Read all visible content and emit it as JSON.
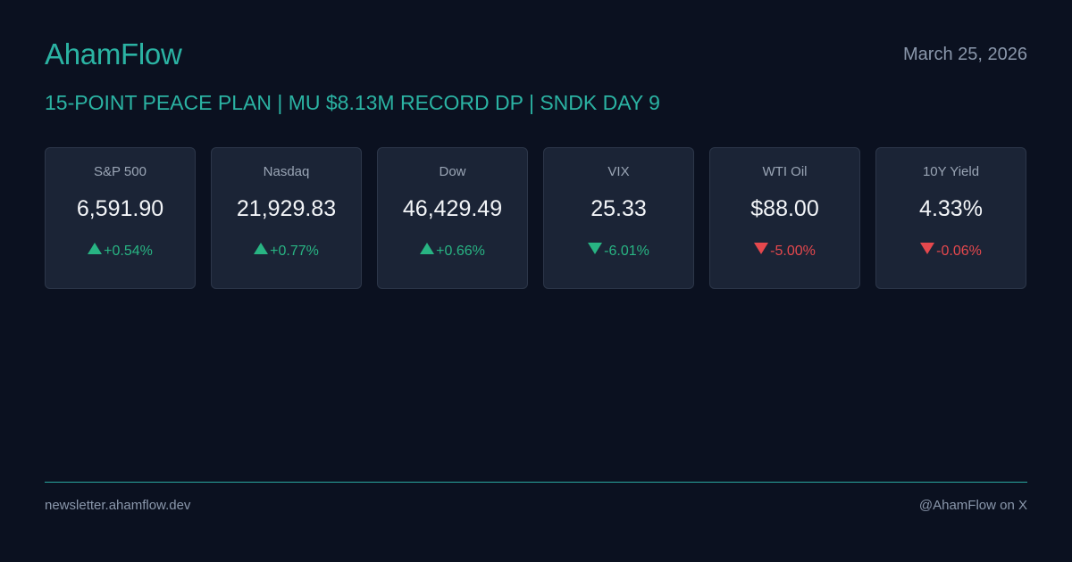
{
  "header": {
    "brand": "AhamFlow",
    "date": "March 25, 2026",
    "headline": "15-POINT PEACE PLAN | MU $8.13M RECORD DP | SNDK DAY 9"
  },
  "colors": {
    "background": "#0b1120",
    "accent": "#2bb3a3",
    "card": "#1b2436",
    "positive": "#28b483",
    "negative": "#e5484d"
  },
  "cards": [
    {
      "name": "S&P 500",
      "value": "6,591.90",
      "change": "+0.54%",
      "direction": "up",
      "tone": "positive"
    },
    {
      "name": "Nasdaq",
      "value": "21,929.83",
      "change": "+0.77%",
      "direction": "up",
      "tone": "positive"
    },
    {
      "name": "Dow",
      "value": "46,429.49",
      "change": "+0.66%",
      "direction": "up",
      "tone": "positive"
    },
    {
      "name": "VIX",
      "value": "25.33",
      "change": "-6.01%",
      "direction": "down",
      "tone": "positive"
    },
    {
      "name": "WTI Oil",
      "value": "$88.00",
      "change": "-5.00%",
      "direction": "down",
      "tone": "negative"
    },
    {
      "name": "10Y Yield",
      "value": "4.33%",
      "change": "-0.06%",
      "direction": "down",
      "tone": "negative"
    }
  ],
  "footer": {
    "website": "newsletter.ahamflow.dev",
    "social": "@AhamFlow on X"
  }
}
